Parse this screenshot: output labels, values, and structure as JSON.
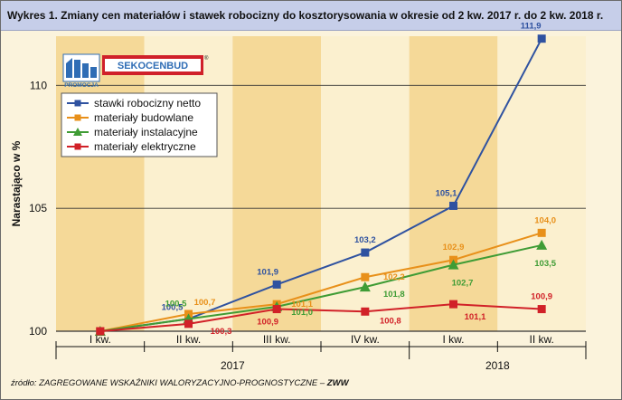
{
  "title": "Wykres 1.  Zmiany cen materiałów i stawek robocizny do kosztorysowania w okresie od 2 kw. 2017 r. do 2 kw. 2018 r.",
  "source_prefix": "źródło: ZAGREGOWANE WSKAŹNIKI WALORYZACYJNO-PROGNOSTYCZNE – ",
  "source_bold": "ZWW",
  "logo": {
    "badge": "PROMOCJA",
    "brand": "SEKOCENBUD",
    "reg": "®",
    "color_brand": "#d0202a",
    "color_badge": "#2f6db5",
    "icon": "building-logo-icon"
  },
  "chart_data": {
    "type": "line",
    "ylabel": "Narastająco w %",
    "ylim": [
      100,
      112
    ],
    "yticks": [
      100,
      105,
      110
    ],
    "yticks_labels": [
      "100",
      "105",
      "110"
    ],
    "categories": [
      "I kw.",
      "II kw.",
      "III kw.",
      "IV kw.",
      "I kw.",
      "II kw."
    ],
    "years": [
      {
        "label": "2017",
        "from": 0,
        "to": 3
      },
      {
        "label": "2018",
        "from": 4,
        "to": 5
      }
    ],
    "grid": true,
    "legend_position": "top-left",
    "series": [
      {
        "name": "stawki robocizny netto",
        "color": "#2f52a0",
        "marker": "square",
        "values": [
          100,
          100.5,
          101.9,
          103.2,
          105.1,
          111.9
        ],
        "labels": [
          "",
          "100,5",
          "101,9",
          "103,2",
          "105,1",
          "111,9"
        ]
      },
      {
        "name": "materiały budowlane",
        "color": "#e8901a",
        "marker": "square",
        "values": [
          100,
          100.7,
          101.1,
          102.2,
          102.9,
          104.0
        ],
        "labels": [
          "",
          "100,7",
          "101,1",
          "102,2",
          "102,9",
          "104,0"
        ]
      },
      {
        "name": "materiały instalacyjne",
        "color": "#3f9c35",
        "marker": "triangle",
        "values": [
          100,
          100.5,
          101.0,
          101.8,
          102.7,
          103.5
        ],
        "labels": [
          "",
          "100,5",
          "101,0",
          "101,8",
          "102,7",
          "103,5"
        ]
      },
      {
        "name": "materiały elektryczne",
        "color": "#d12128",
        "marker": "square",
        "values": [
          100,
          100.3,
          100.9,
          100.8,
          101.1,
          100.9
        ],
        "labels": [
          "",
          "100,3",
          "100,9",
          "100,8",
          "101,1",
          "100,9"
        ]
      }
    ]
  }
}
